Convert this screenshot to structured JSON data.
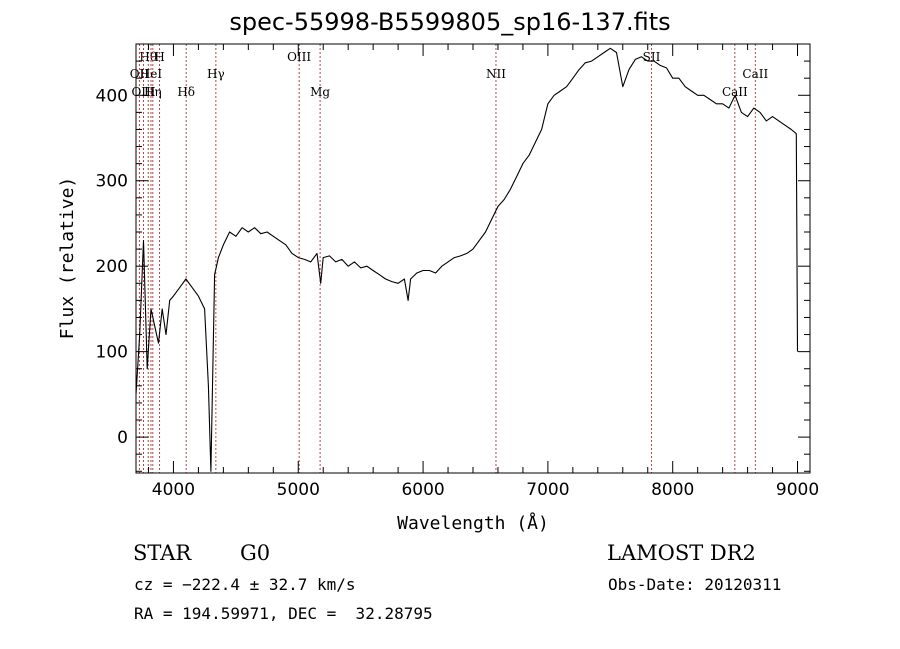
{
  "chart_data": {
    "type": "line",
    "title": "spec-55998-B5599805_sp16-137.fits",
    "xlabel": "Wavelength (Å)",
    "ylabel": "Flux (relative)",
    "xlim": [
      3700,
      9100
    ],
    "ylim": [
      -42,
      460
    ],
    "xticks": [
      4000,
      5000,
      6000,
      7000,
      8000,
      9000
    ],
    "yticks": [
      0,
      100,
      200,
      300,
      400
    ],
    "grid": false,
    "series": [
      {
        "values_x": [
          3700,
          3730,
          3760,
          3790,
          3820,
          3850,
          3880,
          3910,
          3940,
          3970,
          4000,
          4050,
          4100,
          4150,
          4200,
          4250,
          4280,
          4300,
          4330,
          4360,
          4400,
          4450,
          4500,
          4550,
          4600,
          4650,
          4700,
          4750,
          4800,
          4850,
          4900,
          4950,
          5000,
          5050,
          5100,
          5150,
          5180,
          5200,
          5250,
          5300,
          5350,
          5400,
          5450,
          5500,
          5550,
          5600,
          5650,
          5700,
          5750,
          5800,
          5850,
          5880,
          5900,
          5950,
          6000,
          6050,
          6100,
          6150,
          6200,
          6250,
          6300,
          6350,
          6400,
          6450,
          6500,
          6550,
          6600,
          6650,
          6700,
          6750,
          6800,
          6850,
          6900,
          6950,
          7000,
          7050,
          7100,
          7150,
          7200,
          7250,
          7300,
          7350,
          7400,
          7450,
          7500,
          7550,
          7600,
          7650,
          7700,
          7750,
          7800,
          7850,
          7900,
          7950,
          8000,
          8050,
          8100,
          8150,
          8200,
          8250,
          8300,
          8350,
          8400,
          8450,
          8500,
          8550,
          8600,
          8650,
          8700,
          8750,
          8800,
          8850,
          8900,
          8950,
          8990,
          9000
        ],
        "values_y": [
          50,
          120,
          230,
          80,
          150,
          130,
          110,
          150,
          120,
          160,
          165,
          175,
          185,
          175,
          165,
          150,
          60,
          -40,
          190,
          210,
          225,
          240,
          235,
          245,
          240,
          245,
          238,
          240,
          235,
          230,
          225,
          215,
          210,
          208,
          205,
          215,
          180,
          210,
          212,
          205,
          208,
          200,
          205,
          198,
          200,
          195,
          190,
          185,
          182,
          180,
          185,
          160,
          185,
          192,
          195,
          195,
          192,
          200,
          205,
          210,
          212,
          215,
          220,
          230,
          240,
          255,
          270,
          278,
          290,
          305,
          320,
          330,
          345,
          360,
          390,
          400,
          405,
          410,
          420,
          430,
          438,
          440,
          445,
          450,
          455,
          450,
          410,
          430,
          442,
          445,
          440,
          440,
          435,
          432,
          420,
          420,
          410,
          405,
          400,
          400,
          395,
          390,
          390,
          385,
          400,
          380,
          375,
          385,
          380,
          370,
          375,
          370,
          365,
          360,
          355,
          100
        ],
        "color": "#000000"
      }
    ],
    "lines": [
      {
        "label": "Hθ",
        "x": 3798,
        "row": 1
      },
      {
        "label": "H",
        "x": 3889,
        "row": 1
      },
      {
        "label": "OII",
        "x": 3727,
        "row": 2
      },
      {
        "label": "HeI",
        "x": 3820,
        "row": 2
      },
      {
        "label": "OIII",
        "x": 3760,
        "row": 3
      },
      {
        "label": "Hη",
        "x": 3835,
        "row": 3
      },
      {
        "label": "Hδ",
        "x": 4102,
        "row": 3
      },
      {
        "label": "Hγ",
        "x": 4340,
        "row": 2
      },
      {
        "label": "OIII",
        "x": 5007,
        "row": 1
      },
      {
        "label": "Mg",
        "x": 5175,
        "row": 3
      },
      {
        "label": "NII",
        "x": 6584,
        "row": 2
      },
      {
        "label": "SII",
        "x": 7830,
        "row": 1
      },
      {
        "label": "CaII",
        "x": 8662,
        "row": 2
      },
      {
        "label": "CaII",
        "x": 8498,
        "row": 3
      }
    ]
  },
  "info": {
    "class": "STAR",
    "subclass": "G0",
    "survey": "LAMOST DR2",
    "cz": "cz = −222.4 ± 32.7 km/s",
    "obsdate": "Obs-Date: 20120311",
    "radec": "RA = 194.59971, DEC =  32.28795"
  }
}
